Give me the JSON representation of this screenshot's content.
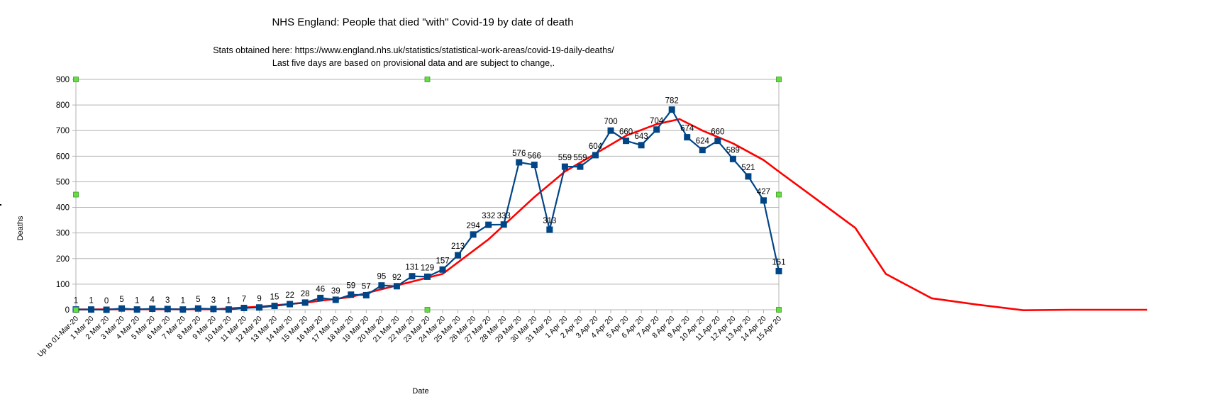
{
  "chart_data": {
    "type": "line",
    "title": "NHS England: People that died \"with\" Covid-19 by date of death",
    "subtitle_lines": [
      "Stats obtained here: https://www.england.nhs.uk/statistics/statistical-work-areas/covid-19-daily-deaths/",
      "Last five days are based on provisional data and are subject to change,."
    ],
    "xlabel": "Date",
    "ylabel": "Deaths",
    "ylim": [
      0,
      900
    ],
    "yticks": [
      0,
      100,
      200,
      300,
      400,
      500,
      600,
      700,
      800,
      900
    ],
    "grid": true,
    "categories": [
      "Up to 01-Mar-20",
      "1 Mar 20",
      "2 Mar 20",
      "3 Mar 20",
      "4 Mar 20",
      "5 Mar 20",
      "6 Mar 20",
      "7 Mar 20",
      "8 Mar 20",
      "9 Mar 20",
      "10 Mar 20",
      "11 Mar 20",
      "12 Mar 20",
      "13 Mar 20",
      "14 Mar 20",
      "15 Mar 20",
      "16 Mar 20",
      "17 Mar 20",
      "18 Mar 20",
      "19 Mar 20",
      "20 Mar 20",
      "21 Mar 20",
      "22 Mar 20",
      "23 Mar 20",
      "24 Mar 20",
      "25 Mar 20",
      "26 Mar 20",
      "27 Mar 20",
      "28 Mar 20",
      "29 Mar 20",
      "30 Mar 20",
      "31 Mar 20",
      "1 Apr 20",
      "2 Apr 20",
      "3 Apr 20",
      "4 Apr 20",
      "5 Apr 20",
      "6 Apr 20",
      "7 Apr 20",
      "8 Apr 20",
      "9 Apr 20",
      "10 Apr 20",
      "11 Apr 20",
      "12 Apr 20",
      "13 Apr 20",
      "14 Apr 20",
      "15 Apr 20"
    ],
    "series": [
      {
        "type": "line",
        "color": "#004586",
        "marker": "square",
        "values": [
          1,
          1,
          0,
          5,
          1,
          4,
          3,
          1,
          5,
          3,
          1,
          7,
          9,
          15,
          22,
          28,
          46,
          39,
          59,
          57,
          95,
          92,
          131,
          129,
          157,
          213,
          294,
          332,
          333,
          576,
          566,
          313,
          559,
          559,
          604,
          700,
          660,
          643,
          704,
          782,
          674,
          624,
          660,
          589,
          521,
          427,
          151
        ]
      },
      {
        "type": "trendline",
        "color": "#ff0000",
        "x": [
          0,
          3,
          6,
          9,
          12,
          15,
          18,
          21,
          24,
          27,
          30,
          32,
          34,
          36,
          38,
          39.5,
          41,
          43,
          45,
          46,
          48.5,
          51,
          53,
          56,
          59,
          62,
          65.1,
          70.1
        ],
        "values": [
          1,
          2,
          2,
          2,
          12,
          28,
          50,
          95,
          140,
          275,
          440,
          540,
          610,
          680,
          725,
          745,
          700,
          650,
          585,
          540,
          430,
          320,
          140,
          45,
          20,
          -2,
          0,
          0
        ]
      }
    ]
  }
}
